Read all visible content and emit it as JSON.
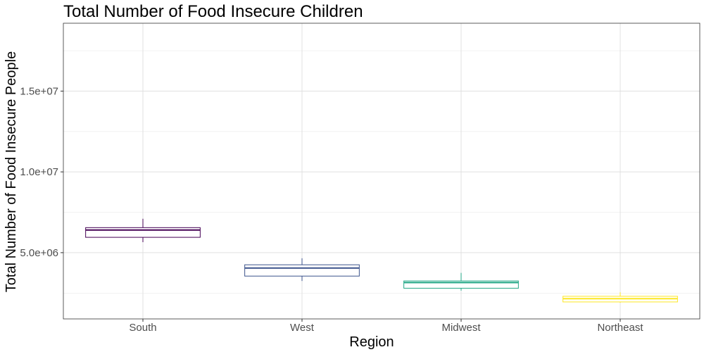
{
  "chart_data": {
    "type": "box",
    "title": "Total Number of Food Insecure Children",
    "xlabel": "Region",
    "ylabel": "Total Number of Food Insecure People",
    "categories": [
      "South",
      "West",
      "Midwest",
      "Northeast"
    ],
    "boxes": [
      {
        "category": "South",
        "min": 5650000,
        "q1": 5950000,
        "median": 6400000,
        "q3": 6550000,
        "max": 7100000,
        "color": "#440154"
      },
      {
        "category": "West",
        "min": 3250000,
        "q1": 3550000,
        "median": 4050000,
        "q3": 4250000,
        "max": 4650000,
        "color": "#3b528b"
      },
      {
        "category": "Midwest",
        "min": 2650000,
        "q1": 2800000,
        "median": 3150000,
        "q3": 3250000,
        "max": 3750000,
        "color": "#21a685"
      },
      {
        "category": "Northeast",
        "min": 1900000,
        "q1": 1950000,
        "median": 2150000,
        "q3": 2300000,
        "max": 2550000,
        "color": "#fde725"
      }
    ],
    "ylim": [
      900000,
      19200000
    ],
    "yticks": [
      5000000,
      10000000,
      15000000
    ],
    "ytick_labels": [
      "5.0e+06",
      "1.0e+07",
      "1.5e+07"
    ],
    "grid": true,
    "legend": "none"
  }
}
